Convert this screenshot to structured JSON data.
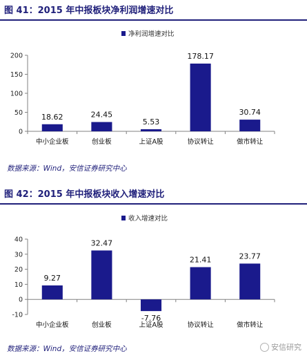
{
  "figures": [
    {
      "title": "图 41：2015 年中报板块净利润增速对比",
      "source": "数据来源：Wind，安信证券研究中心"
    },
    {
      "title": "图 42：2015 年中报板块收入增速对比",
      "source": "数据来源：Wind，安信证券研究中心"
    }
  ],
  "watermark": {
    "text": "安信研究",
    "icon": "wechat-icon"
  },
  "colors": {
    "bar": "#1a1a8c",
    "title": "#1f1f7a",
    "axis": "#808080"
  },
  "chart_data": [
    {
      "type": "bar",
      "title": "",
      "xlabel": "",
      "ylabel": "",
      "categories": [
        "中小企业板",
        "创业板",
        "上证A股",
        "协议转让",
        "做市转让"
      ],
      "series": [
        {
          "name": "净利润增速对比",
          "values": [
            18.62,
            24.45,
            5.53,
            178.17,
            30.74
          ]
        }
      ],
      "data_labels": [
        "18.62",
        "24.45",
        "5.53",
        "178.17",
        "30.74"
      ],
      "ylim": [
        0,
        200
      ],
      "yticks": [
        0,
        50,
        100,
        150,
        200
      ],
      "grid": false,
      "legend": "top-center"
    },
    {
      "type": "bar",
      "title": "",
      "xlabel": "",
      "ylabel": "",
      "categories": [
        "中小企业板",
        "创业板",
        "上证A股",
        "协议转让",
        "做市转让"
      ],
      "series": [
        {
          "name": "收入增速对比",
          "values": [
            9.27,
            32.47,
            -7.76,
            21.41,
            23.77
          ]
        }
      ],
      "data_labels": [
        "9.27",
        "32.47",
        "-7.76",
        "21.41",
        "23.77"
      ],
      "ylim": [
        -10,
        40
      ],
      "yticks": [
        -10,
        0,
        10,
        20,
        30,
        40
      ],
      "grid": false,
      "legend": "top-center"
    }
  ]
}
